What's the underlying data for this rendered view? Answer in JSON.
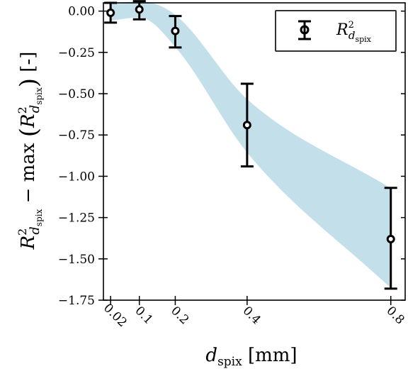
{
  "chart_data": {
    "type": "scatter",
    "title": "",
    "xlabel": {
      "main": "d",
      "sub": "spix",
      "unit": " [mm]"
    },
    "ylabel": {
      "r": "R",
      "sup": "2",
      "d": "d",
      "sub": "spix",
      "mid": " − max ",
      "unit": " [-]"
    },
    "xlim": [
      0,
      0.84
    ],
    "ylim": [
      -1.75,
      0.05
    ],
    "x_ticks": [
      "0.02",
      "0.1",
      "0.2",
      "0.4",
      "0.8"
    ],
    "x_tick_values": [
      0.02,
      0.1,
      0.2,
      0.4,
      0.8
    ],
    "y_ticks": [
      "0.00",
      "−0.25",
      "−0.50",
      "−0.75",
      "−1.00",
      "−1.25",
      "−1.50",
      "−1.75"
    ],
    "y_tick_values": [
      0.0,
      -0.25,
      -0.5,
      -0.75,
      -1.0,
      -1.25,
      -1.5,
      -1.75
    ],
    "grid": false,
    "legend_position": "top-right",
    "series": [
      {
        "name": {
          "r": "R",
          "sup": "2",
          "d": "d",
          "sub": "spix"
        },
        "x": [
          0.02,
          0.1,
          0.2,
          0.4,
          0.8
        ],
        "y": [
          -0.01,
          0.01,
          -0.12,
          -0.69,
          -1.38
        ],
        "error_low": [
          -0.07,
          -0.05,
          -0.22,
          -0.94,
          -1.68
        ],
        "error_high": [
          0.05,
          0.06,
          -0.03,
          -0.44,
          -1.07
        ],
        "color": "#000000"
      }
    ],
    "band": {
      "color": "#b9d9e6",
      "x": [
        0.02,
        0.1,
        0.2,
        0.4,
        0.8
      ],
      "upper": [
        0.05,
        0.06,
        -0.02,
        -0.53,
        -1.07
      ],
      "lower": [
        -0.06,
        -0.04,
        -0.22,
        -0.86,
        -1.68
      ]
    }
  }
}
